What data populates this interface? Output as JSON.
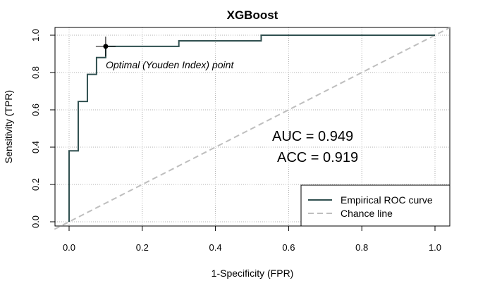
{
  "chart_data": {
    "type": "line",
    "title": "XGBoost",
    "xlabel": "1-Specificity (FPR)",
    "ylabel": "Sensitivity (TPR)",
    "xlim": [
      0,
      1
    ],
    "ylim": [
      0,
      1
    ],
    "x_ticks": [
      "0.0",
      "0.2",
      "0.4",
      "0.6",
      "0.8",
      "1.0"
    ],
    "y_ticks": [
      "0.0",
      "0.2",
      "0.4",
      "0.6",
      "0.8",
      "1.0"
    ],
    "grid": true,
    "series": [
      {
        "name": "Empirical ROC curve",
        "color": "#2f4f4f",
        "x": [
          0,
          0,
          0.025,
          0.025,
          0.05,
          0.05,
          0.075,
          0.075,
          0.1,
          0.1,
          0.3,
          0.3,
          0.525,
          0.525,
          1.0
        ],
        "y": [
          0,
          0.38,
          0.38,
          0.645,
          0.645,
          0.79,
          0.79,
          0.88,
          0.88,
          0.94,
          0.94,
          0.97,
          0.97,
          1.0,
          1.0
        ]
      },
      {
        "name": "Chance line",
        "color": "#bebebe",
        "dashed": true,
        "x": [
          0,
          1
        ],
        "y": [
          0,
          1
        ]
      }
    ],
    "optimal_point": {
      "x": 0.1,
      "y": 0.94,
      "label": "Optimal (Youden Index) point"
    },
    "stats": {
      "auc": "AUC =  0.949",
      "acc": "ACC =  0.919"
    },
    "legend_position": "bottom-right"
  }
}
